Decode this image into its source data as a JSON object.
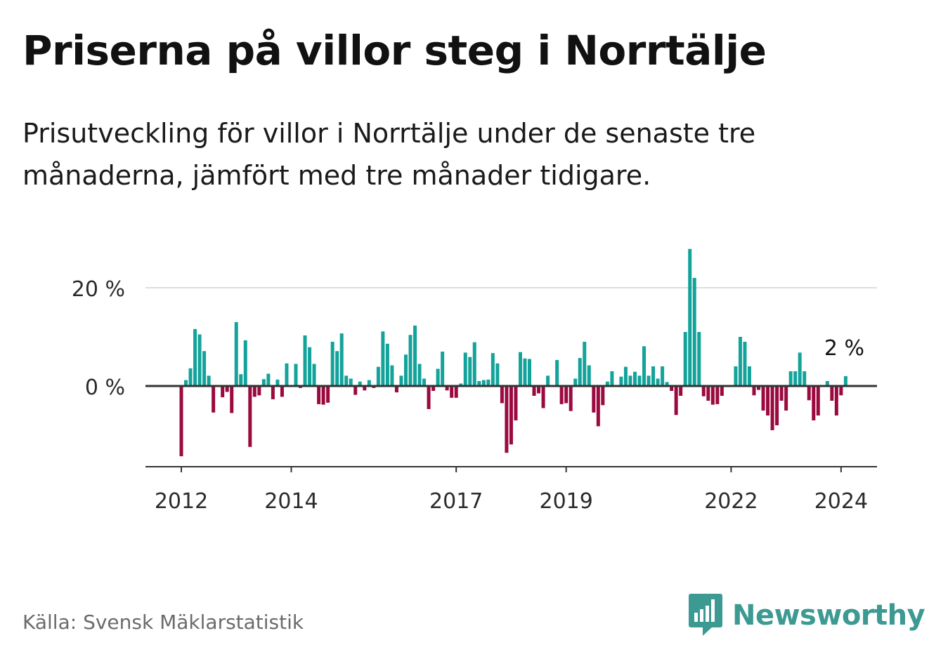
{
  "title": "Priserna på villor steg i Norrtälje",
  "subtitle": "Prisutveckling för villor i Norrtälje under de senaste tre månaderna, jämfört med tre månader tidigare.",
  "source": "Källa: Svensk Mäklarstatistik",
  "brand": "Newsworthy",
  "colors": {
    "positive": "#13a39b",
    "negative": "#9b0a3f",
    "brand": "#3c9a92",
    "text": "#121212"
  },
  "chart_data": {
    "type": "bar",
    "title": "Priserna på villor steg i Norrtälje",
    "ylabel": "",
    "xlabel": "",
    "ylim": [
      -16,
      29
    ],
    "y_ticks": [
      {
        "value": 0,
        "label": "0 %"
      },
      {
        "value": 20,
        "label": "20 %"
      }
    ],
    "x_ticks": [
      {
        "index": 0,
        "label": "2012"
      },
      {
        "index": 24,
        "label": "2014"
      },
      {
        "index": 60,
        "label": "2017"
      },
      {
        "index": 84,
        "label": "2019"
      },
      {
        "index": 120,
        "label": "2022"
      },
      {
        "index": 144,
        "label": "2024"
      }
    ],
    "annotation": {
      "label": "2 %",
      "index": 145
    },
    "values": [
      -14.3,
      1.2,
      3.6,
      11.6,
      10.5,
      7.1,
      2.1,
      -5.4,
      0,
      -2.3,
      -1.2,
      -5.5,
      13,
      2.4,
      9.3,
      -12.4,
      -2.2,
      -1.9,
      1.4,
      2.5,
      -2.7,
      1.3,
      -2.2,
      4.6,
      0,
      4.5,
      -0.4,
      10.3,
      7.9,
      4.5,
      -3.7,
      -3.8,
      -3.4,
      9,
      7.1,
      10.7,
      2.1,
      1.5,
      -1.8,
      0.9,
      -0.9,
      1.2,
      -0.4,
      3.9,
      11.1,
      8.6,
      4.2,
      -1.3,
      2.1,
      6.4,
      10.4,
      12.3,
      4.5,
      1.5,
      -4.7,
      -1,
      3.5,
      7,
      -0.9,
      -2.4,
      -2.4,
      0.5,
      6.8,
      5.9,
      8.9,
      1,
      1.2,
      1.3,
      6.7,
      4.6,
      -3.5,
      -13.6,
      -11.9,
      -7,
      6.9,
      5.6,
      5.5,
      -2,
      -1.5,
      -4.5,
      2.1,
      0,
      5.3,
      -3.7,
      -3.5,
      -5.1,
      1.5,
      5.7,
      9,
      4.2,
      -5.4,
      -8.2,
      -3.9,
      0.9,
      3,
      0,
      1.9,
      3.9,
      2.1,
      2.9,
      2.1,
      8.1,
      2.1,
      4,
      1.5,
      4,
      0.8,
      -1,
      -5.9,
      -2,
      11,
      27.9,
      22,
      11,
      -2.1,
      -3,
      -3.8,
      -3.7,
      -2,
      0,
      0,
      4,
      10,
      9,
      4,
      -1.9,
      -0.8,
      -5,
      -6,
      -9,
      -8,
      -3,
      -5,
      3,
      3,
      6.8,
      3,
      -2.9,
      -7,
      -6,
      0,
      1,
      -3,
      -6,
      -1.9,
      2
    ]
  }
}
